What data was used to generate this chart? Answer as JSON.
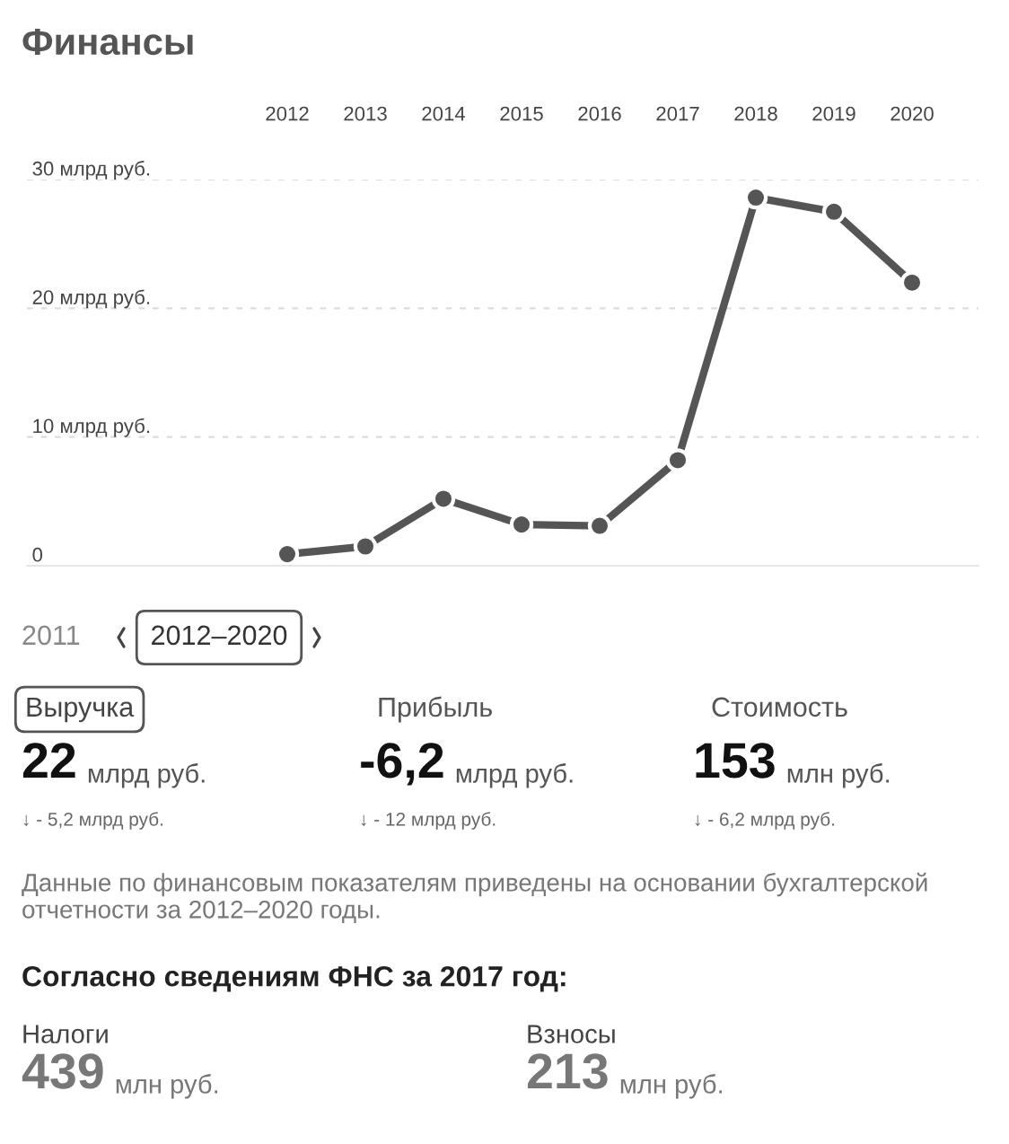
{
  "chart_data": {
    "type": "line",
    "title": "Финансы",
    "categories": [
      "2012",
      "2013",
      "2014",
      "2015",
      "2016",
      "2017",
      "2018",
      "2019",
      "2020"
    ],
    "series": [
      {
        "color": "#555555",
        "values": [
          0.9,
          1.5,
          5.2,
          3.2,
          3.1,
          8.2,
          28.6,
          27.5,
          22
        ]
      }
    ],
    "ylim": [
      0,
      30
    ],
    "yticks": [
      {
        "value": 0,
        "label": "0"
      },
      {
        "value": 10,
        "label": "10 млрд руб."
      },
      {
        "value": 20,
        "label": "20 млрд руб."
      },
      {
        "value": 30,
        "label": "30 млрд руб."
      }
    ],
    "grid": "y",
    "marker": "circle",
    "line_style": "solid",
    "legend": false,
    "annotations": [
      "2011",
      "2012–2020",
      "Выручка",
      "Прибыль",
      "Стоимость",
      "22",
      "млрд руб.",
      "-6,2",
      "млрд руб.",
      "153",
      "млн руб.",
      "↓ - 5,2 млрд руб.",
      "↓ - 12 млрд руб.",
      "↓ - 6,2 млрд руб.",
      "Данные по финансовым показателям приведены на основании бухгалтерской отчетности за 2012–2020 годы.",
      "Согласно сведениям ФНС за 2017 год:",
      "Налоги",
      "439",
      "млн руб.",
      "Взносы",
      "213",
      "млн руб."
    ]
  }
}
